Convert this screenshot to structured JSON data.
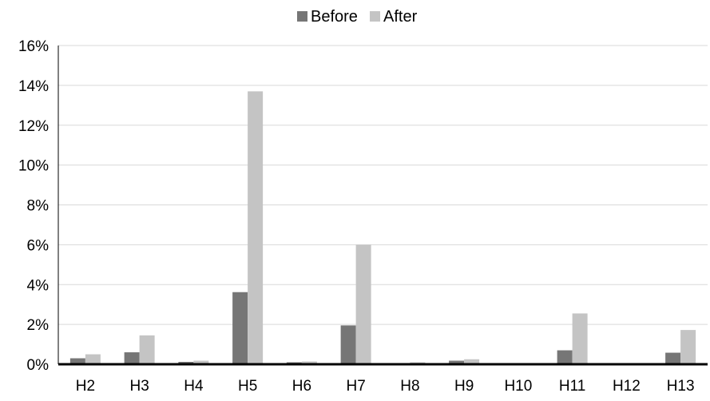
{
  "chart_data": {
    "type": "bar",
    "title": "",
    "xlabel": "",
    "ylabel": "",
    "categories": [
      "H2",
      "H3",
      "H4",
      "H5",
      "H6",
      "H7",
      "H8",
      "H9",
      "H10",
      "H11",
      "H12",
      "H13"
    ],
    "series": [
      {
        "name": "Before",
        "color": "#767676",
        "values": [
          0.3,
          0.6,
          0.12,
          3.62,
          0.1,
          1.95,
          0.06,
          0.18,
          0.02,
          0.7,
          0.01,
          0.58
        ]
      },
      {
        "name": "After",
        "color": "#c4c4c4",
        "values": [
          0.5,
          1.45,
          0.18,
          13.7,
          0.14,
          6.0,
          0.1,
          0.25,
          0.03,
          2.55,
          0.02,
          1.72
        ]
      }
    ],
    "ylim": [
      0,
      16
    ],
    "yticks": [
      0,
      2,
      4,
      6,
      8,
      10,
      12,
      14,
      16
    ],
    "ytick_labels": [
      "0%",
      "2%",
      "4%",
      "6%",
      "8%",
      "10%",
      "12%",
      "14%",
      "16%"
    ],
    "grid": true,
    "legend_position": "top-center"
  }
}
